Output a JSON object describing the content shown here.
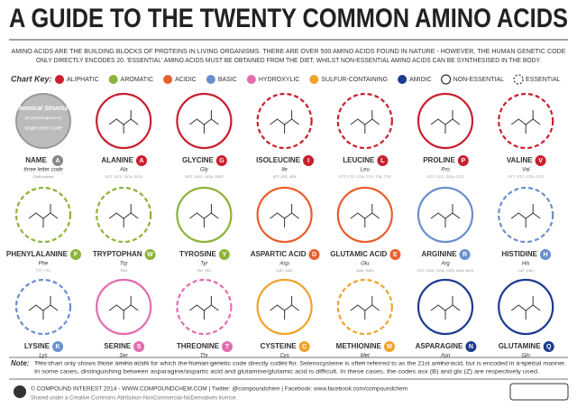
{
  "title": "A GUIDE TO THE TWENTY COMMON AMINO ACIDS",
  "intro": [
    "AMINO ACIDS ARE THE BUILDING BLOCKS OF PROTEINS IN LIVING ORGANISMS. THERE ARE OVER 500 AMINO ACIDS FOUND IN NATURE - HOWEVER, THE HUMAN GENETIC CODE",
    "ONLY DIRECTLY ENCODES 20. 'ESSENTIAL' AMINO ACIDS MUST BE OBTAINED FROM THE DIET, WHILST NON-ESSENTIAL AMINO ACIDS CAN BE SYNTHESISED IN THE BODY."
  ],
  "key": {
    "label": "Chart Key:",
    "categories": [
      {
        "name": "ALIPHATIC",
        "color": "#c8202f"
      },
      {
        "name": "AROMATIC",
        "color": "#8db33a"
      },
      {
        "name": "ACIDIC",
        "color": "#e8602c"
      },
      {
        "name": "BASIC",
        "color": "#6a8fcf"
      },
      {
        "name": "HYDROXYLIC",
        "color": "#e26cb0"
      },
      {
        "name": "SULFUR-CONTAINING",
        "color": "#f0a32b"
      },
      {
        "name": "AMIDIC",
        "color": "#1d3c8f"
      }
    ],
    "non_essential": "NON-ESSENTIAL",
    "essential": "ESSENTIAL"
  },
  "legend_card": {
    "structure": "Chemical Structure",
    "ph": "(at physiological pH)",
    "letter": "single letter code",
    "name": "NAME",
    "code": "three letter code",
    "codons": "DNA codons",
    "badge": "A"
  },
  "acids": [
    {
      "name": "ALANINE",
      "letter": "A",
      "code": "Ala",
      "codons": "GCT, GCC, GCA, GCG",
      "category": 0,
      "essential": false
    },
    {
      "name": "GLYCINE",
      "letter": "G",
      "code": "Gly",
      "codons": "GGT, GGC, GGA, GGG",
      "category": 0,
      "essential": false
    },
    {
      "name": "ISOLEUCINE",
      "letter": "I",
      "code": "Ile",
      "codons": "ATT, ATC, ATA",
      "category": 0,
      "essential": true
    },
    {
      "name": "LEUCINE",
      "letter": "L",
      "code": "Leu",
      "codons": "CTT, CTC, CTA, CTG, TTA, TTG",
      "category": 0,
      "essential": true
    },
    {
      "name": "PROLINE",
      "letter": "P",
      "code": "Pro",
      "codons": "CCT, CCC, CCA, CCG",
      "category": 0,
      "essential": false
    },
    {
      "name": "VALINE",
      "letter": "V",
      "code": "Val",
      "codons": "GTT, GTC, GTA, GTG",
      "category": 0,
      "essential": true
    },
    {
      "name": "PHENYLALANINE",
      "letter": "F",
      "code": "Phe",
      "codons": "TTT, TTC",
      "category": 1,
      "essential": true
    },
    {
      "name": "TRYPTOPHAN",
      "letter": "W",
      "code": "Trp",
      "codons": "TGG",
      "category": 1,
      "essential": true
    },
    {
      "name": "TYROSINE",
      "letter": "Y",
      "code": "Tyr",
      "codons": "TAT, TAC",
      "category": 1,
      "essential": false
    },
    {
      "name": "ASPARTIC ACID",
      "letter": "D",
      "code": "Asp",
      "codons": "GAT, GAC",
      "category": 2,
      "essential": false
    },
    {
      "name": "GLUTAMIC ACID",
      "letter": "E",
      "code": "Glu",
      "codons": "GAA, GAG",
      "category": 2,
      "essential": false
    },
    {
      "name": "ARGININE",
      "letter": "R",
      "code": "Arg",
      "codons": "CGT, CGC, CGA, CGG, AGA, AGG",
      "category": 3,
      "essential": false
    },
    {
      "name": "HISTIDINE",
      "letter": "H",
      "code": "His",
      "codons": "CAT, CAC",
      "category": 3,
      "essential": true
    },
    {
      "name": "LYSINE",
      "letter": "K",
      "code": "Lys",
      "codons": "AAA, AAG",
      "category": 3,
      "essential": true
    },
    {
      "name": "SERINE",
      "letter": "S",
      "code": "Ser",
      "codons": "TCT, TCC, TCA, TCG, AGT, AGC",
      "category": 4,
      "essential": false
    },
    {
      "name": "THREONINE",
      "letter": "T",
      "code": "Thr",
      "codons": "ACT, ACC, ACA, ACG",
      "category": 4,
      "essential": true
    },
    {
      "name": "CYSTEINE",
      "letter": "C",
      "code": "Cys",
      "codons": "TGT, TGC",
      "category": 5,
      "essential": false
    },
    {
      "name": "METHIONINE",
      "letter": "M",
      "code": "Met",
      "codons": "ATG",
      "category": 5,
      "essential": true
    },
    {
      "name": "ASPARAGINE",
      "letter": "N",
      "code": "Asn",
      "codons": "AAT, AAC",
      "category": 6,
      "essential": false
    },
    {
      "name": "GLUTAMINE",
      "letter": "Q",
      "code": "Gln",
      "codons": "CAA, CAG",
      "category": 6,
      "essential": false
    }
  ],
  "note": {
    "label": "Note:",
    "lines": [
      "This chart only shows those amino acids for which the human genetic code directly codes for. Selenocysteine is often referred to as the 21st amino acid, but is encoded in a special manner.",
      "In some cases, distinguishing between asparagine/aspartic acid and glutamine/glutamic acid is difficult. In these cases, the codes asx (B) and glx (Z) are respectively used."
    ]
  },
  "footer": {
    "line1": "© COMPOUND INTEREST 2014 - WWW.COMPOUNDCHEM.COM | Twitter: @compoundchem | Facebook: www.facebook.com/compoundchem",
    "line2": "Shared under a Creative Commons Attribution-NonCommercial-NoDerivatives licence."
  }
}
